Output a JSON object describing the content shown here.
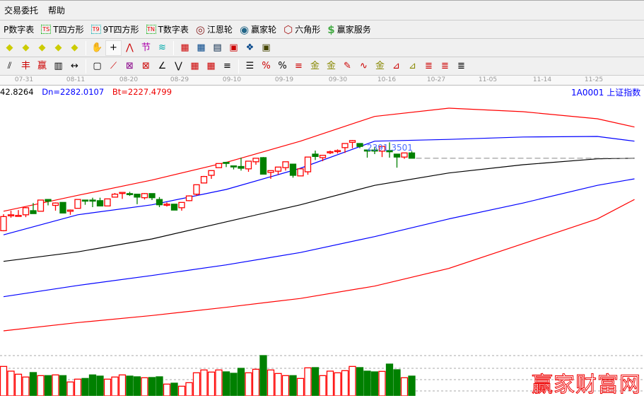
{
  "menu": [
    "交易委托",
    "帮助"
  ],
  "toolbar1": [
    {
      "label": "P数字表",
      "icon": ""
    },
    {
      "label": "T四方形",
      "icon": "TS",
      "color": "#0a0"
    },
    {
      "label": "9T四方形",
      "icon": "T9",
      "color": "#0aa"
    },
    {
      "label": "T数字表",
      "icon": "TN",
      "color": "#0a0"
    },
    {
      "label": "江恩轮",
      "icon": "gann-wheel-icon"
    },
    {
      "label": "赢家轮",
      "icon": "big-wheel-icon"
    },
    {
      "label": "六角形",
      "icon": "hexagon-icon"
    },
    {
      "label": "赢家服务",
      "icon": "dollar-icon"
    }
  ],
  "dates": [
    "07-31",
    "08-11",
    "08-20",
    "08-29",
    "09-10",
    "09-19",
    "09-30",
    "10-16",
    "10-27",
    "11-05",
    "11-14",
    "11-25"
  ],
  "info": {
    "value": "42.8264",
    "dn": "Dn=2282.0107",
    "bt": "Bt=2227.4799"
  },
  "symbol": "1A0001  上证指数",
  "price_label": "2391.3501",
  "watermark": "赢家财富网",
  "colors": {
    "up": "#ff0000",
    "down": "#008000",
    "band_outer": "#ff0000",
    "band_inner": "#0000ff",
    "mid": "#000000",
    "axis_text": "#999999"
  },
  "chart_data": {
    "type": "candlestick",
    "candles": [
      [
        2237,
        2265,
        2236,
        2261
      ],
      [
        2264,
        2271,
        2259,
        2264
      ],
      [
        2263,
        2272,
        2263,
        2263
      ],
      [
        2264,
        2277,
        2260,
        2276
      ],
      [
        2271,
        2284,
        2266,
        2266
      ],
      [
        2270,
        2289,
        2270,
        2289
      ],
      [
        2290,
        2290,
        2280,
        2287
      ],
      [
        2280,
        2285,
        2271,
        2284
      ],
      [
        2285,
        2285,
        2267,
        2267
      ],
      [
        2270,
        2273,
        2264,
        2272
      ],
      [
        2275,
        2290,
        2275,
        2290
      ],
      [
        2289,
        2289,
        2281,
        2289
      ],
      [
        2289,
        2293,
        2277,
        2289
      ],
      [
        2288,
        2293,
        2279,
        2279
      ],
      [
        2279,
        2291,
        2279,
        2291
      ],
      [
        2294,
        2301,
        2294,
        2299
      ],
      [
        2302,
        2302,
        2291,
        2302
      ],
      [
        2300,
        2303,
        2296,
        2300
      ],
      [
        2299,
        2299,
        2282,
        2294
      ],
      [
        2293,
        2301,
        2290,
        2300
      ],
      [
        2300,
        2300,
        2289,
        2293
      ],
      [
        2290,
        2294,
        2277,
        2281
      ],
      [
        2282,
        2285,
        2278,
        2282
      ],
      [
        2282,
        2282,
        2272,
        2272
      ],
      [
        2276,
        2285,
        2271,
        2285
      ],
      [
        2288,
        2297,
        2287,
        2296
      ],
      [
        2299,
        2315,
        2296,
        2315
      ],
      [
        2318,
        2330,
        2318,
        2329
      ],
      [
        2331,
        2339,
        2325,
        2339
      ],
      [
        2344,
        2351,
        2344,
        2351
      ],
      [
        2353,
        2354,
        2345,
        2353
      ],
      [
        2347,
        2347,
        2341,
        2347
      ],
      [
        2346,
        2361,
        2339,
        2343
      ],
      [
        2342,
        2355,
        2337,
        2355
      ],
      [
        2354,
        2360,
        2349,
        2360
      ],
      [
        2361,
        2362,
        2333,
        2333
      ],
      [
        2336,
        2339,
        2325,
        2339
      ],
      [
        2338,
        2345,
        2332,
        2345
      ],
      [
        2344,
        2354,
        2339,
        2354
      ],
      [
        2350,
        2350,
        2327,
        2331
      ],
      [
        2330,
        2342,
        2330,
        2342
      ],
      [
        2337,
        2362,
        2332,
        2362
      ],
      [
        2367,
        2373,
        2357,
        2363
      ],
      [
        2361,
        2365,
        2355,
        2365
      ],
      [
        2371,
        2373,
        2367,
        2371
      ],
      [
        2373,
        2375,
        2368,
        2373
      ],
      [
        2378,
        2385,
        2369,
        2385
      ],
      [
        2387,
        2391,
        2377,
        2390
      ],
      [
        2385,
        2385,
        2377,
        2380
      ],
      [
        2374,
        2374,
        2361,
        2374
      ],
      [
        2374,
        2379,
        2367,
        2374
      ],
      [
        2372,
        2380,
        2362,
        2380
      ],
      [
        2373,
        2387,
        2361,
        2371
      ],
      [
        2367,
        2367,
        2344,
        2362
      ],
      [
        2362,
        2369,
        2359,
        2369
      ],
      [
        2369,
        2372,
        2360,
        2360
      ]
    ],
    "candle_fields": [
      "open",
      "high",
      "low",
      "close"
    ],
    "down_flags": [
      0,
      0,
      0,
      0,
      1,
      0,
      1,
      0,
      1,
      0,
      0,
      1,
      1,
      1,
      0,
      0,
      0,
      1,
      1,
      0,
      1,
      1,
      0,
      1,
      0,
      0,
      0,
      0,
      0,
      0,
      1,
      1,
      1,
      0,
      0,
      1,
      0,
      0,
      0,
      1,
      0,
      0,
      1,
      0,
      0,
      0,
      0,
      0,
      1,
      1,
      1,
      0,
      1,
      1,
      0,
      1
    ],
    "volume": [
      125,
      105,
      92,
      80,
      99,
      86,
      86,
      89,
      86,
      59,
      71,
      74,
      89,
      84,
      71,
      80,
      89,
      84,
      81,
      77,
      78,
      81,
      50,
      54,
      41,
      56,
      98,
      110,
      101,
      110,
      102,
      96,
      117,
      98,
      113,
      171,
      110,
      95,
      86,
      86,
      74,
      119,
      120,
      86,
      105,
      98,
      107,
      125,
      120,
      105,
      102,
      104,
      135,
      111,
      77,
      84
    ],
    "bands": {
      "x_index": [
        0,
        10,
        20,
        30,
        40,
        50,
        60,
        70,
        80,
        85
      ],
      "upper_outer": [
        2270,
        2297,
        2323,
        2353,
        2389,
        2431,
        2445,
        2439,
        2427,
        2413
      ],
      "upper_inner": [
        2230,
        2264,
        2281,
        2307,
        2343,
        2389,
        2392,
        2396,
        2397,
        2389
      ],
      "middle": [
        2185,
        2201,
        2223,
        2252,
        2281,
        2314,
        2335,
        2349,
        2359,
        2360
      ],
      "lower_inner": [
        2125,
        2144,
        2161,
        2179,
        2200,
        2227,
        2257,
        2284,
        2314,
        2325
      ],
      "lower_outer": [
        2067,
        2081,
        2093,
        2107,
        2122,
        2143,
        2173,
        2215,
        2257,
        2290
      ]
    },
    "last_close_line": 2360
  }
}
